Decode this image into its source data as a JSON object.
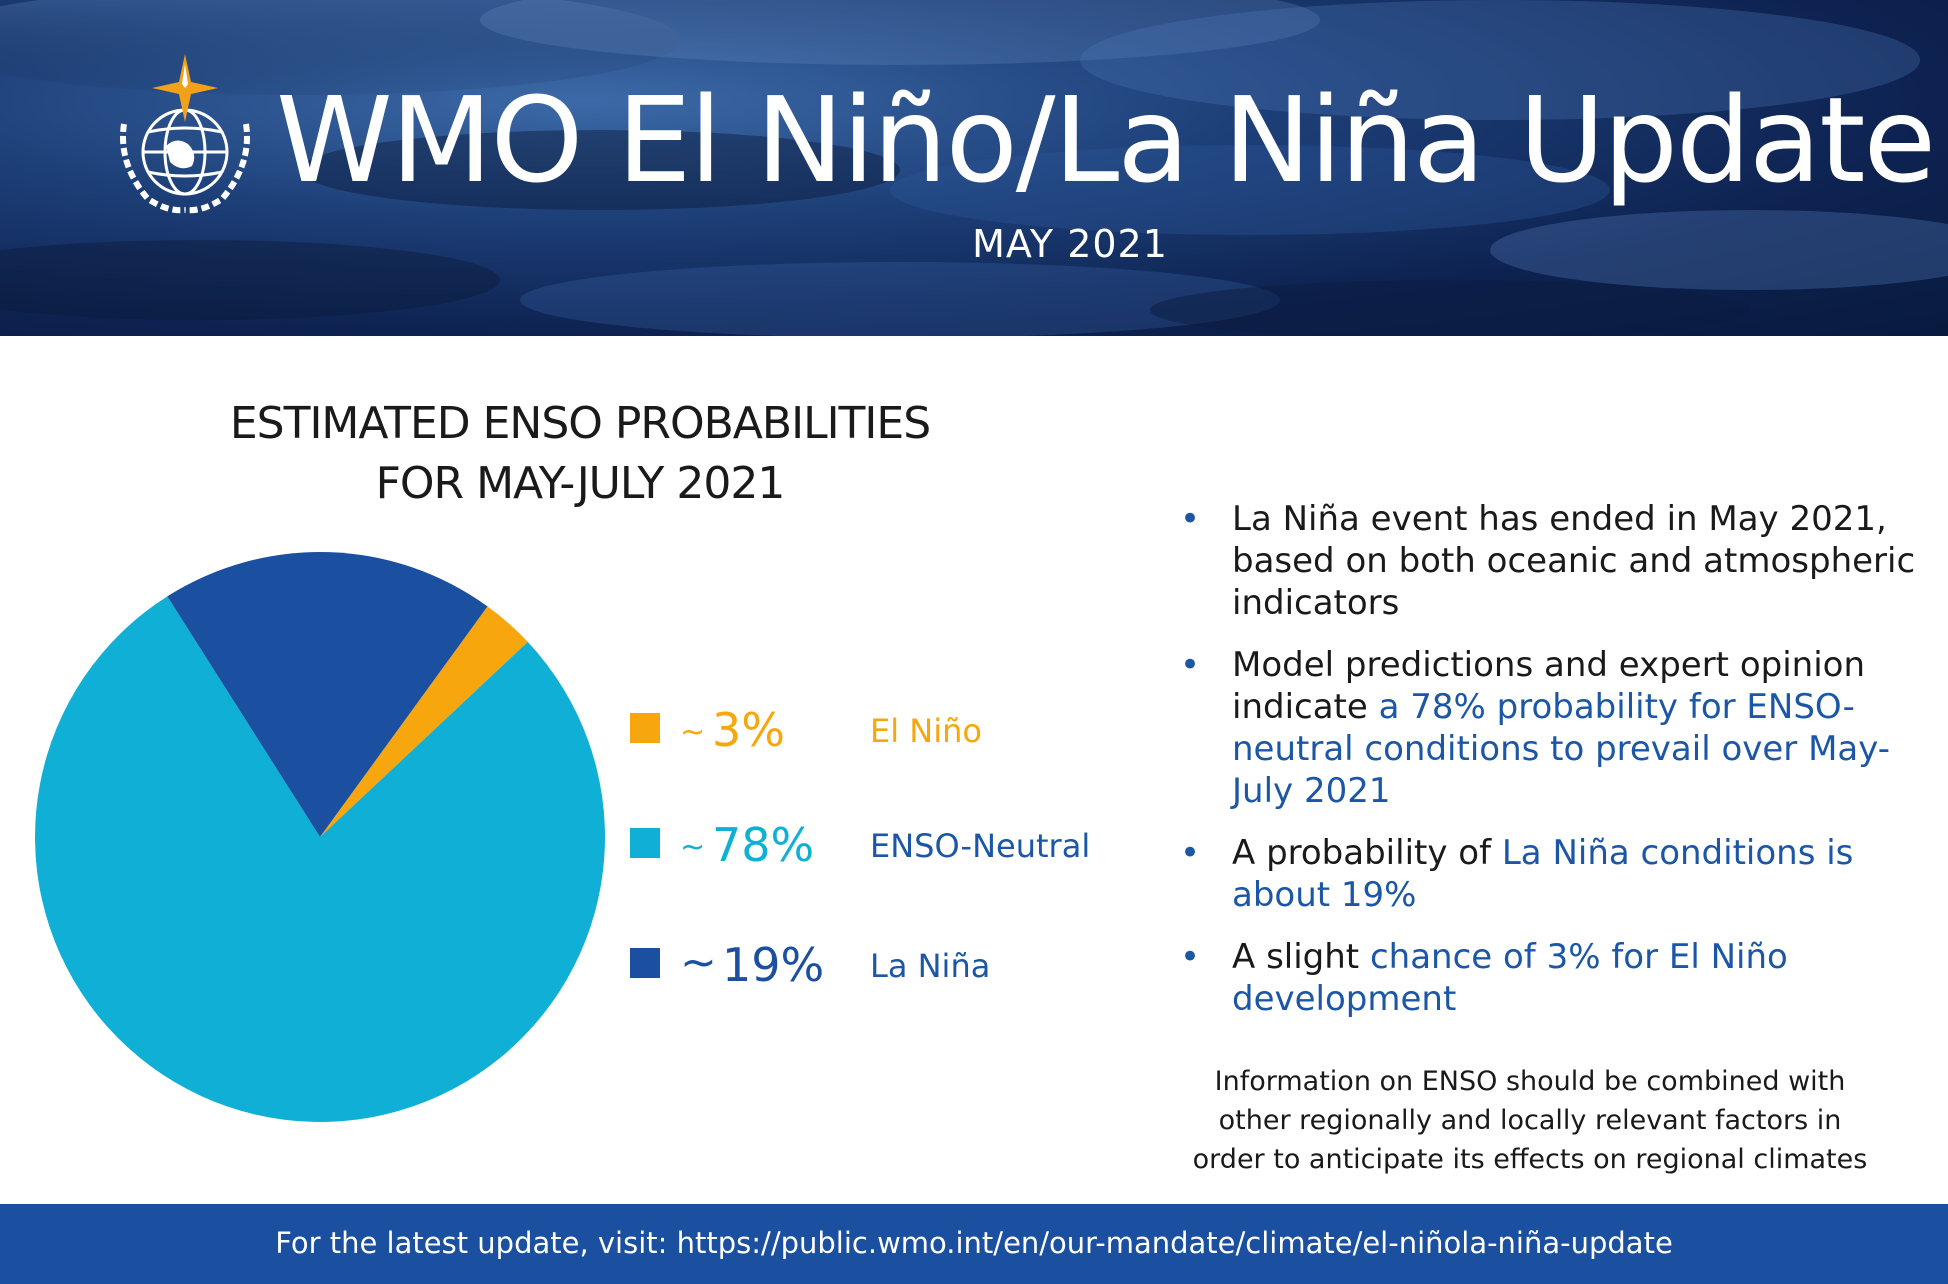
{
  "header": {
    "title": "WMO El Niño/La Niña Update",
    "subtitle": "MAY 2021"
  },
  "chart_data": {
    "type": "pie",
    "title_line1": "ESTIMATED ENSO PROBABILITIES",
    "title_line2": "FOR MAY-JULY 2021",
    "slices": [
      {
        "name": "El Niño",
        "value": 3,
        "label": "3%",
        "tilde": "~",
        "color": "#f7a70d"
      },
      {
        "name": "ENSO-Neutral",
        "value": 78,
        "label": "78%",
        "tilde": "~",
        "color": "#10b0d6"
      },
      {
        "name": "La Niña",
        "value": 19,
        "label": "19%",
        "tilde": "~",
        "color": "#1b4fa0"
      }
    ]
  },
  "bullets": [
    {
      "dot": "•",
      "plain": "La Niña event has ended in May 2021, based on both oceanic and atmospheric indicators",
      "highlight": ""
    },
    {
      "dot": "•",
      "plain": "Model predictions and expert opinion indicate ",
      "highlight": "a 78% probability for ENSO-neutral conditions to prevail over May-July 2021"
    },
    {
      "dot": "•",
      "plain": "A probability of ",
      "highlight": "La Niña conditions is about 19%"
    },
    {
      "dot": "•",
      "plain": "A slight ",
      "highlight": "chance of 3% for El Niño development"
    }
  ],
  "note": "Information on ENSO should be combined with other regionally and locally relevant factors in order to anticipate its effects on regional climates",
  "footer": {
    "text": "For the latest update, visit: https://public.wmo.int/en/our-mandate/climate/el-niñola-niña-update"
  },
  "colors": {
    "accent_blue": "#1b57a6",
    "footer_blue": "#1b4fa0"
  },
  "icons": {
    "logo": "wmo-emblem-icon"
  }
}
